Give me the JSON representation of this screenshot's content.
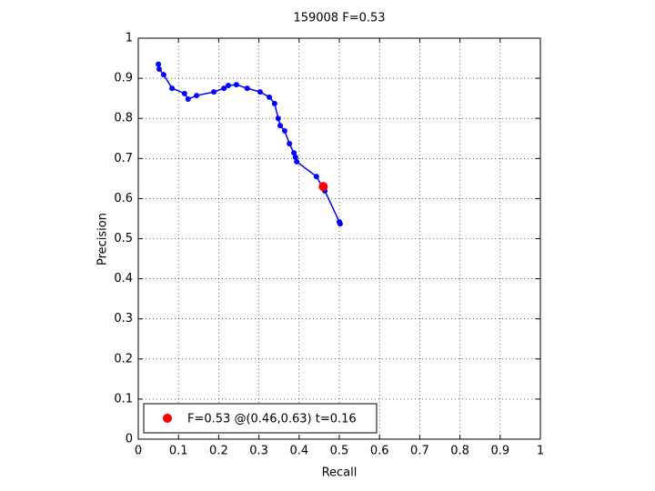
{
  "chart_data": {
    "type": "line",
    "title": "159008 F=0.53",
    "xlabel": "Recall",
    "ylabel": "Precision",
    "xlim": [
      0,
      1
    ],
    "ylim": [
      0,
      1
    ],
    "xticks": [
      0,
      0.1,
      0.2,
      0.3,
      0.4,
      0.5,
      0.6,
      0.7,
      0.8,
      0.9,
      1
    ],
    "yticks": [
      0,
      0.1,
      0.2,
      0.3,
      0.4,
      0.5,
      0.6,
      0.7,
      0.8,
      0.9,
      1
    ],
    "grid": true,
    "legend": "southwest",
    "series": [
      {
        "color": "#0000ff",
        "linestyle": "solid",
        "x": [
          0.05,
          0.052,
          0.063,
          0.084,
          0.115,
          0.124,
          0.145,
          0.188,
          0.213,
          0.224,
          0.244,
          0.271,
          0.303,
          0.326,
          0.339,
          0.348,
          0.353,
          0.364,
          0.376,
          0.387,
          0.391,
          0.394,
          0.443,
          0.464,
          0.5,
          0.502
        ],
        "values": [
          0.935,
          0.923,
          0.909,
          0.875,
          0.862,
          0.848,
          0.857,
          0.866,
          0.875,
          0.882,
          0.884,
          0.875,
          0.866,
          0.853,
          0.837,
          0.8,
          0.782,
          0.769,
          0.737,
          0.714,
          0.703,
          0.692,
          0.655,
          0.619,
          0.542,
          0.537
        ]
      },
      {
        "name": "F=0.53 @(0.46,0.63) t=0.16",
        "color": "#ff0000",
        "linestyle": "none",
        "x": [
          0.46
        ],
        "values": [
          0.63
        ]
      }
    ]
  }
}
